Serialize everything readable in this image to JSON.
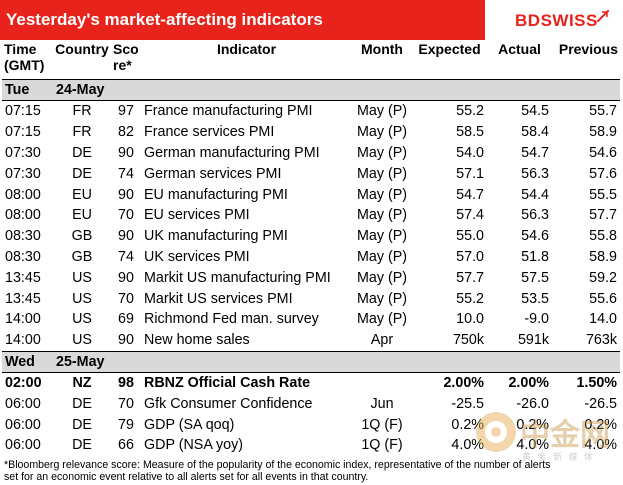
{
  "header": {
    "title": "Yesterday's market-affecting indicators",
    "logo_bd": "BD",
    "logo_swiss": "SWISS"
  },
  "columns": {
    "time": "Time (GMT)",
    "country": "Country",
    "score": "Score*",
    "indicator": "Indicator",
    "month": "Month",
    "expected": "Expected",
    "actual": "Actual",
    "previous": "Previous"
  },
  "days": [
    {
      "weekday": "Tue",
      "date": "24-May",
      "rows": [
        {
          "time": "07:15",
          "country": "FR",
          "score": "97",
          "indicator": "France manufacturing PMI",
          "month": "May (P)",
          "expected": "55.2",
          "actual": "54.5",
          "previous": "55.7"
        },
        {
          "time": "07:15",
          "country": "FR",
          "score": "82",
          "indicator": "France services PMI",
          "month": "May (P)",
          "expected": "58.5",
          "actual": "58.4",
          "previous": "58.9"
        },
        {
          "time": "07:30",
          "country": "DE",
          "score": "90",
          "indicator": "German manufacturing PMI",
          "month": "May (P)",
          "expected": "54.0",
          "actual": "54.7",
          "previous": "54.6"
        },
        {
          "time": "07:30",
          "country": "DE",
          "score": "74",
          "indicator": "German services PMI",
          "month": "May (P)",
          "expected": "57.1",
          "actual": "56.3",
          "previous": "57.6"
        },
        {
          "time": "08:00",
          "country": "EU",
          "score": "90",
          "indicator": "EU manufacturing PMI",
          "month": "May (P)",
          "expected": "54.7",
          "actual": "54.4",
          "previous": "55.5"
        },
        {
          "time": "08:00",
          "country": "EU",
          "score": "70",
          "indicator": "EU services PMI",
          "month": "May (P)",
          "expected": "57.4",
          "actual": "56.3",
          "previous": "57.7"
        },
        {
          "time": "08:30",
          "country": "GB",
          "score": "90",
          "indicator": "UK manufacturing PMI",
          "month": "May (P)",
          "expected": "55.0",
          "actual": "54.6",
          "previous": "55.8"
        },
        {
          "time": "08:30",
          "country": "GB",
          "score": "74",
          "indicator": "UK services PMI",
          "month": "May (P)",
          "expected": "57.0",
          "actual": "51.8",
          "previous": "58.9"
        },
        {
          "time": "13:45",
          "country": "US",
          "score": "90",
          "indicator": "Markit US manufacturing PMI",
          "month": "May (P)",
          "expected": "57.7",
          "actual": "57.5",
          "previous": "59.2"
        },
        {
          "time": "13:45",
          "country": "US",
          "score": "70",
          "indicator": "Markit US services PMI",
          "month": "May (P)",
          "expected": "55.2",
          "actual": "53.5",
          "previous": "55.6"
        },
        {
          "time": "14:00",
          "country": "US",
          "score": "69",
          "indicator": "Richmond Fed man. survey",
          "month": "May (P)",
          "expected": "10.0",
          "actual": "-9.0",
          "previous": "14.0"
        },
        {
          "time": "14:00",
          "country": "US",
          "score": "90",
          "indicator": "New home sales",
          "month": "Apr",
          "expected": "750k",
          "actual": "591k",
          "previous": "763k"
        }
      ]
    },
    {
      "weekday": "Wed",
      "date": "25-May",
      "rows": [
        {
          "time": "02:00",
          "country": "NZ",
          "score": "98",
          "indicator": "RBNZ Official Cash Rate",
          "month": "",
          "expected": "2.00%",
          "actual": "2.00%",
          "previous": "1.50%",
          "bold": true
        },
        {
          "time": "06:00",
          "country": "DE",
          "score": "70",
          "indicator": "Gfk Consumer Confidence",
          "month": "Jun",
          "expected": "-25.5",
          "actual": "-26.0",
          "previous": "-26.5"
        },
        {
          "time": "06:00",
          "country": "DE",
          "score": "79",
          "indicator": "GDP (SA qoq)",
          "month": "1Q (F)",
          "expected": "0.2%",
          "actual": "0.2%",
          "previous": "0.2%"
        },
        {
          "time": "06:00",
          "country": "DE",
          "score": "66",
          "indicator": "GDP (NSA yoy)",
          "month": "1Q (F)",
          "expected": "4.0%",
          "actual": "4.0%",
          "previous": "4.0%"
        }
      ]
    }
  ],
  "footnote": "*Bloomberg relevance score: Measure of the popularity of the economic index, representative of the number of alerts set for an economic event relative to all alerts set for all events in that country.",
  "watermark": {
    "text": "中金网",
    "sub": "黄 金 新 媒 体"
  }
}
